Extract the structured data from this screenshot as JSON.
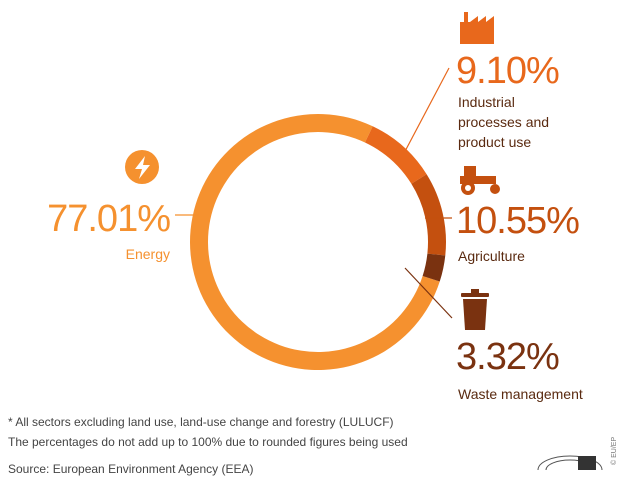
{
  "chart_data": {
    "type": "donut",
    "categories": [
      "Energy",
      "Industrial processes and product use",
      "Agriculture",
      "Waste management"
    ],
    "values": [
      77.01,
      9.1,
      10.55,
      3.32
    ],
    "value_labels": [
      "77.01%",
      "9.10%",
      "10.55%",
      "3.32%"
    ],
    "colors": [
      "#f5912f",
      "#e8681c",
      "#c4500f",
      "#7a3210"
    ],
    "notes": [
      "* All sectors excluding land use, land-use change and forestry (LULUCF)",
      "The percentages do not add up to 100% due to rounded figures being used"
    ],
    "source": "Source: European Environment Agency (EEA)",
    "credit": "© EU/EP"
  }
}
